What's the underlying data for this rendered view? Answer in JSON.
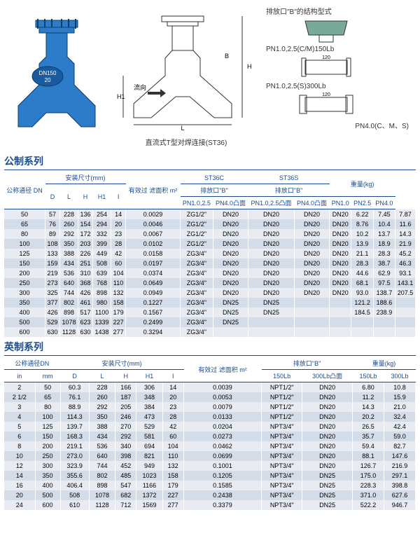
{
  "topDiagram": {
    "valveText1": "DN150",
    "valveText2": "20",
    "midCaption": "直流式T型对焊连接(ST36)",
    "flowLabel": "流向",
    "rightTitle": "排放口\"B\"的结构型式",
    "rightRow1": "PN1.0,2.5(C/M)150Lb",
    "rightRow1b": "120",
    "rightRow2": "PN1.0,2.5(S)300Lb",
    "rightRow2b": "120",
    "rightRow3": "PN4.0(C、M、S)"
  },
  "section1": {
    "title": "公制系列",
    "headers": {
      "dn": "公称通径\nDN",
      "install": "安装尺寸(mm)",
      "d": "D",
      "l": "L",
      "h": "H",
      "h1": "H1",
      "i": "I",
      "area": "有效过\n滤面积\nm²",
      "st36c": "ST36C",
      "st36s": "ST36S",
      "drainB": "排放口\"B\"",
      "pn1025": "PN1.0,2.5",
      "pn40tu": "PN4.0凸面",
      "pn1025tu": "PN1.0,2.5凸面",
      "weight": "重量(kg)",
      "pn10": "PN1.0",
      "pn25": "PN2.5",
      "pn40": "PN4.0"
    },
    "rows": [
      [
        "50",
        "57",
        "228",
        "136",
        "254",
        "14",
        "0.0029",
        "ZG1/2\"",
        "DN20",
        "DN20",
        "DN20",
        "DN20",
        "6.22",
        "7.45",
        "7.87"
      ],
      [
        "65",
        "76",
        "260",
        "154",
        "294",
        "20",
        "0.0046",
        "ZG1/2\"",
        "DN20",
        "DN20",
        "DN20",
        "DN20",
        "8.76",
        "10.4",
        "11.6"
      ],
      [
        "80",
        "89",
        "292",
        "172",
        "332",
        "23",
        "0.0067",
        "ZG1/2\"",
        "DN20",
        "DN20",
        "DN20",
        "DN20",
        "10.2",
        "13.7",
        "14.3"
      ],
      [
        "100",
        "108",
        "350",
        "203",
        "399",
        "28",
        "0.0102",
        "ZG1/2\"",
        "DN20",
        "DN20",
        "DN20",
        "DN20",
        "13.9",
        "18.9",
        "21.9"
      ],
      [
        "125",
        "133",
        "388",
        "226",
        "449",
        "42",
        "0.0158",
        "ZG3/4\"",
        "DN20",
        "DN20",
        "DN20",
        "DN20",
        "21.1",
        "28.3",
        "45.2"
      ],
      [
        "150",
        "159",
        "434",
        "251",
        "508",
        "60",
        "0.0197",
        "ZG3/4\"",
        "DN20",
        "DN20",
        "DN20",
        "DN20",
        "28.3",
        "38.7",
        "46.3"
      ],
      [
        "200",
        "219",
        "536",
        "310",
        "639",
        "104",
        "0.0374",
        "ZG3/4\"",
        "DN20",
        "DN20",
        "DN20",
        "DN20",
        "44.6",
        "62.9",
        "93.1"
      ],
      [
        "250",
        "273",
        "640",
        "368",
        "768",
        "110",
        "0.0649",
        "ZG3/4\"",
        "DN20",
        "DN20",
        "DN20",
        "DN20",
        "68.1",
        "97.5",
        "143.1"
      ],
      [
        "300",
        "325",
        "744",
        "426",
        "898",
        "132",
        "0.0949",
        "ZG3/4\"",
        "DN20",
        "DN20",
        "DN20",
        "DN20",
        "93.0",
        "138.7",
        "207.5"
      ],
      [
        "350",
        "377",
        "802",
        "461",
        "980",
        "158",
        "0.1227",
        "ZG3/4\"",
        "DN25",
        "DN25",
        "",
        "",
        "121.2",
        "188.6",
        ""
      ],
      [
        "400",
        "426",
        "898",
        "517",
        "1100",
        "179",
        "0.1567",
        "ZG3/4\"",
        "DN25",
        "DN25",
        "",
        "",
        "184.5",
        "238.9",
        ""
      ],
      [
        "500",
        "529",
        "1078",
        "623",
        "1339",
        "227",
        "0.2499",
        "ZG3/4\"",
        "DN25",
        "",
        "",
        "",
        "",
        "",
        ""
      ],
      [
        "600",
        "630",
        "1128",
        "630",
        "1438",
        "277",
        "0.3294",
        "ZG3/4\"",
        "",
        "",
        "",
        "",
        "",
        "",
        ""
      ]
    ]
  },
  "section2": {
    "title": "英制系列",
    "headers": {
      "dn": "公称通径DN",
      "in": "in",
      "mm": "mm",
      "install": "安装尺寸(mm)",
      "d": "D",
      "l": "L",
      "h": "H",
      "h1": "H1",
      "i": "I",
      "area": "有效过\n滤面积\nm²",
      "drainB": "排放口\"B\"",
      "lb150": "150Lb",
      "lb300tu": "300Lb凸面",
      "weight": "重量(kg)",
      "lb300": "300Lb"
    },
    "rows": [
      [
        "2",
        "50",
        "60.3",
        "228",
        "166",
        "306",
        "14",
        "0.0039",
        "NPT1/2\"",
        "DN20",
        "6.80",
        "10.8"
      ],
      [
        "2 1/2",
        "65",
        "76.1",
        "260",
        "187",
        "348",
        "20",
        "0.0053",
        "NPT1/2\"",
        "DN20",
        "11.2",
        "15.9"
      ],
      [
        "3",
        "80",
        "88.9",
        "292",
        "205",
        "384",
        "23",
        "0.0079",
        "NPT1/2\"",
        "DN20",
        "14.3",
        "21.0"
      ],
      [
        "4",
        "100",
        "114.3",
        "350",
        "246",
        "473",
        "28",
        "0.0133",
        "NPT1/2\"",
        "DN20",
        "20.2",
        "32.4"
      ],
      [
        "5",
        "125",
        "139.7",
        "388",
        "270",
        "529",
        "42",
        "0.0204",
        "NPT3/4\"",
        "DN20",
        "26.5",
        "42.4"
      ],
      [
        "6",
        "150",
        "168.3",
        "434",
        "292",
        "581",
        "60",
        "0.0273",
        "NPT3/4\"",
        "DN20",
        "35.7",
        "59.0"
      ],
      [
        "8",
        "200",
        "219.1",
        "536",
        "340",
        "694",
        "104",
        "0.0462",
        "NPT3/4\"",
        "DN20",
        "59.4",
        "82.7"
      ],
      [
        "10",
        "250",
        "273.0",
        "640",
        "398",
        "821",
        "110",
        "0.0699",
        "NPT3/4\"",
        "DN20",
        "88.1",
        "147.6"
      ],
      [
        "12",
        "300",
        "323.9",
        "744",
        "452",
        "949",
        "132",
        "0.1001",
        "NPT3/4\"",
        "DN20",
        "126.7",
        "216.9"
      ],
      [
        "14",
        "350",
        "355.6",
        "802",
        "485",
        "1023",
        "158",
        "0.1205",
        "NPT3/4\"",
        "DN25",
        "175.0",
        "297.1"
      ],
      [
        "16",
        "400",
        "406.4",
        "898",
        "547",
        "1166",
        "179",
        "0.1585",
        "NPT3/4\"",
        "DN25",
        "228.3",
        "398.8"
      ],
      [
        "20",
        "500",
        "508",
        "1078",
        "682",
        "1372",
        "227",
        "0.2438",
        "NPT3/4\"",
        "DN25",
        "371.0",
        "627.6"
      ],
      [
        "24",
        "600",
        "610",
        "1128",
        "712",
        "1569",
        "277",
        "0.3379",
        "NPT3/4\"",
        "DN25",
        "522.2",
        "946.7"
      ]
    ]
  }
}
